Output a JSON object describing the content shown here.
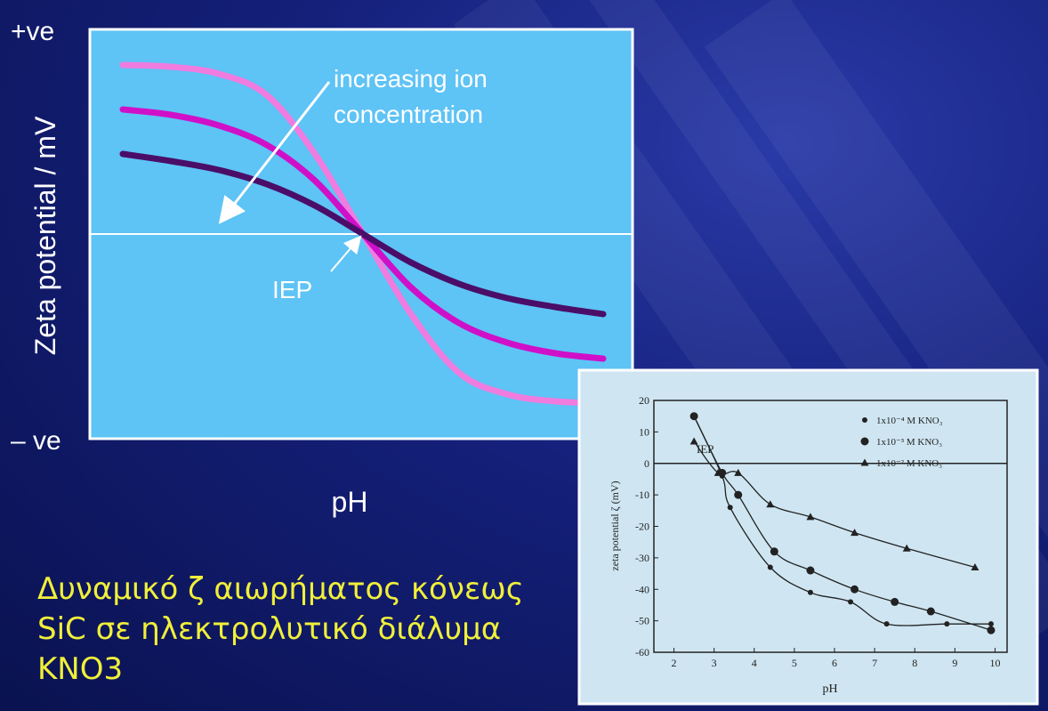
{
  "slide": {
    "caption_lines": [
      "Δυναμικό ζ αιωρήματος κόνεως",
      "SiC σε ηλεκτρολυτικό διάλυμα",
      "KNO3"
    ]
  },
  "chart_data": [
    {
      "type": "line",
      "title": "",
      "xlabel": "pH",
      "ylabel": "Zeta potential / mV",
      "y_tick_labels": [
        "+ve",
        "– ve"
      ],
      "annotations": {
        "arrow_label": [
          "increasing ion",
          "concentration"
        ],
        "iep_label": "IEP"
      },
      "x": [
        0,
        1,
        2,
        3,
        4,
        5,
        6,
        7,
        8,
        9,
        10
      ],
      "series": [
        {
          "color": "#f07ce0",
          "values": [
            0.95,
            0.94,
            0.9,
            0.78,
            0.45,
            0.0,
            -0.45,
            -0.78,
            -0.9,
            -0.94,
            -0.95
          ]
        },
        {
          "color": "#d010c8",
          "values": [
            0.7,
            0.67,
            0.61,
            0.5,
            0.3,
            0.0,
            -0.3,
            -0.5,
            -0.61,
            -0.67,
            -0.7
          ]
        },
        {
          "color": "#4a0e68",
          "values": [
            0.45,
            0.41,
            0.36,
            0.28,
            0.16,
            0.0,
            -0.16,
            -0.28,
            -0.36,
            -0.41,
            -0.45
          ]
        }
      ],
      "colors": {
        "plot_bg": "#5ec3f5",
        "frame": "#ffffff"
      }
    },
    {
      "type": "scatter",
      "title": "",
      "xlabel": "pH",
      "ylabel": "zeta potential   ζ (mV)",
      "xlim": [
        1.5,
        10.3
      ],
      "ylim": [
        -60,
        20
      ],
      "x_ticks": [
        2,
        3,
        4,
        5,
        6,
        7,
        8,
        9,
        10
      ],
      "y_ticks": [
        20,
        10,
        0,
        -10,
        -20,
        -30,
        -40,
        -50,
        -60
      ],
      "legend": "top-right",
      "annotation": "IEP",
      "series": [
        {
          "name": "1x10⁻⁴ M KNO₃",
          "marker": "dot",
          "x": [
            2.5,
            3.2,
            3.4,
            4.4,
            5.4,
            6.4,
            7.3,
            8.8,
            9.9
          ],
          "y": [
            15,
            -4,
            -14,
            -33,
            -41,
            -44,
            -51,
            -51,
            -51
          ]
        },
        {
          "name": "1x10⁻³ M KNO₃",
          "marker": "dot-large",
          "x": [
            2.5,
            3.2,
            3.6,
            4.5,
            5.4,
            6.5,
            7.5,
            8.4,
            9.9
          ],
          "y": [
            15,
            -3,
            -10,
            -28,
            -34,
            -40,
            -44,
            -47,
            -53
          ]
        },
        {
          "name": "1x10⁻² M KNO₃",
          "marker": "triangle",
          "x": [
            2.5,
            3.1,
            3.6,
            4.4,
            5.4,
            6.5,
            7.8,
            9.5
          ],
          "y": [
            7,
            -3,
            -3,
            -13,
            -17,
            -22,
            -27,
            -33
          ]
        }
      ],
      "colors": {
        "plot_bg": "#cfe6f2",
        "ink": "#222222"
      }
    }
  ]
}
